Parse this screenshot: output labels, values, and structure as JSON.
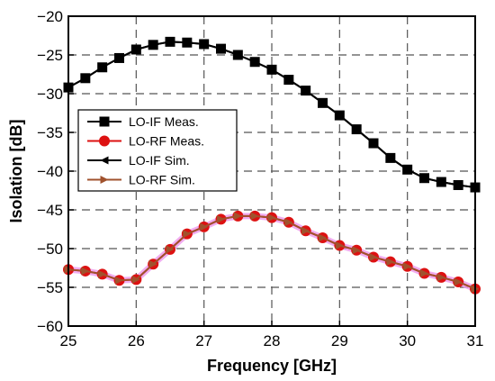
{
  "chart_data": {
    "type": "line",
    "xlabel": "Frequency [GHz]",
    "ylabel": "Isolation [dB]",
    "xlim": [
      25,
      31
    ],
    "ylim": [
      -60,
      -20
    ],
    "xticks": [
      25,
      26,
      27,
      28,
      29,
      30,
      31
    ],
    "yticks": [
      -20,
      -25,
      -30,
      -35,
      -40,
      -45,
      -50,
      -55,
      -60
    ],
    "grid": "dashed",
    "legend_position": "upper-left",
    "x": [
      25,
      25.25,
      25.5,
      25.75,
      26,
      26.25,
      26.5,
      26.75,
      27,
      27.25,
      27.5,
      27.75,
      28,
      28.25,
      28.5,
      28.75,
      29,
      29.25,
      29.5,
      29.75,
      30,
      30.25,
      30.5,
      30.75,
      31
    ],
    "series": [
      {
        "name": "LO-IF Meas.",
        "color": "#000000",
        "marker": "square",
        "values": [
          -29.2,
          -28.0,
          -26.6,
          -25.4,
          -24.3,
          -23.7,
          -23.3,
          -23.4,
          -23.6,
          -24.2,
          -25.0,
          -25.9,
          -26.9,
          -28.2,
          -29.6,
          -31.2,
          -32.8,
          -34.6,
          -36.4,
          -38.3,
          -39.8,
          -40.9,
          -41.4,
          -41.8,
          -42.1
        ]
      },
      {
        "name": "LO-RF Meas.",
        "color": "#dd1111",
        "marker": "circle",
        "values": [
          -52.7,
          -52.9,
          -53.3,
          -54.1,
          -54.0,
          -52.0,
          -50.1,
          -48.1,
          -47.2,
          -46.2,
          -45.8,
          -45.8,
          -46.0,
          -46.6,
          -47.7,
          -48.6,
          -49.6,
          -50.2,
          -51.1,
          -51.7,
          -52.3,
          -53.2,
          -53.7,
          -54.3,
          -55.2
        ]
      },
      {
        "name": "LO-IF Sim.",
        "color": "#000000",
        "marker": "triangle-left",
        "values": [
          -29.2,
          -28.0,
          -26.6,
          -25.4,
          -24.3,
          -23.7,
          -23.3,
          -23.4,
          -23.6,
          -24.2,
          -25.0,
          -25.9,
          -26.9,
          -28.2,
          -29.6,
          -31.2,
          -32.8,
          -34.6,
          -36.4,
          -38.3,
          -39.8,
          -40.9,
          -41.4,
          -41.8,
          -42.1
        ]
      },
      {
        "name": "LO-RF Sim.",
        "color": "#a0522d",
        "marker": "triangle-right",
        "values": [
          -52.7,
          -52.9,
          -53.3,
          -54.1,
          -54.0,
          -52.0,
          -50.1,
          -48.1,
          -47.2,
          -46.2,
          -45.8,
          -45.8,
          -46.0,
          -46.6,
          -47.7,
          -48.6,
          -49.6,
          -50.2,
          -51.1,
          -51.7,
          -52.3,
          -53.2,
          -53.7,
          -54.3,
          -55.2
        ]
      }
    ]
  }
}
